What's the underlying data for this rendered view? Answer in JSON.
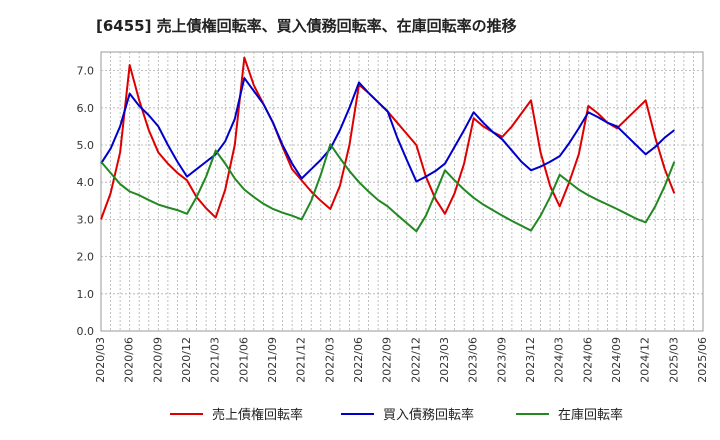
{
  "chart_data": {
    "type": "line",
    "title": "[6455]  売上債権回転率、買入債務回転率、在庫回転率の推移",
    "xlabel": "",
    "ylabel": "",
    "ylim": [
      0,
      7.5
    ],
    "yticks": [
      "0.0",
      "1.0",
      "2.0",
      "3.0",
      "4.0",
      "5.0",
      "6.0",
      "7.0"
    ],
    "xlim": [
      "2020/03",
      "2025/06"
    ],
    "xticks": [
      "2020/03",
      "2020/06",
      "2020/09",
      "2020/12",
      "2021/03",
      "2021/06",
      "2021/09",
      "2021/12",
      "2022/03",
      "2022/06",
      "2022/09",
      "2022/12",
      "2023/03",
      "2023/06",
      "2023/09",
      "2023/12",
      "2024/03",
      "2024/06",
      "2024/09",
      "2024/12",
      "2025/03",
      "2025/06"
    ],
    "grid": true,
    "legend_position": "bottom",
    "x": [
      "2020/03",
      "2020/04",
      "2020/05",
      "2020/06",
      "2020/07",
      "2020/08",
      "2020/09",
      "2020/10",
      "2020/11",
      "2020/12",
      "2021/01",
      "2021/02",
      "2021/03",
      "2021/04",
      "2021/05",
      "2021/06",
      "2021/07",
      "2021/08",
      "2021/09",
      "2021/10",
      "2021/11",
      "2021/12",
      "2022/01",
      "2022/02",
      "2022/03",
      "2022/04",
      "2022/05",
      "2022/06",
      "2022/07",
      "2022/08",
      "2022/09",
      "2022/10",
      "2022/11",
      "2022/12",
      "2023/01",
      "2023/02",
      "2023/03",
      "2023/04",
      "2023/05",
      "2023/06",
      "2023/07",
      "2023/08",
      "2023/09",
      "2023/10",
      "2023/11",
      "2023/12",
      "2024/01",
      "2024/02",
      "2024/03",
      "2024/04",
      "2024/05",
      "2024/06",
      "2024/07",
      "2024/08",
      "2024/09",
      "2024/10",
      "2024/11",
      "2024/12",
      "2025/01",
      "2025/02",
      "2025/03"
    ],
    "series": [
      {
        "name": "売上債権回転率",
        "color": "#dd0000",
        "values": [
          3.0,
          3.7,
          4.8,
          7.15,
          6.2,
          5.4,
          4.8,
          4.5,
          4.25,
          4.05,
          3.6,
          3.3,
          3.05,
          3.8,
          5.0,
          7.35,
          6.6,
          6.1,
          5.6,
          4.95,
          4.35,
          4.05,
          3.75,
          3.5,
          3.28,
          3.9,
          5.0,
          6.62,
          6.4,
          6.15,
          5.9,
          5.6,
          5.3,
          5.0,
          4.15,
          3.55,
          3.15,
          3.7,
          4.5,
          5.72,
          5.5,
          5.35,
          5.22,
          5.5,
          5.85,
          6.2,
          4.8,
          3.9,
          3.35,
          4.0,
          4.75,
          6.05,
          5.85,
          5.6,
          5.45,
          5.7,
          5.95,
          6.2,
          5.2,
          4.35,
          3.7
        ]
      },
      {
        "name": "買入債務回転率",
        "color": "#0000cc",
        "values": [
          4.5,
          4.9,
          5.5,
          6.38,
          6.05,
          5.8,
          5.5,
          5.0,
          4.55,
          4.15,
          4.35,
          4.55,
          4.75,
          5.1,
          5.7,
          6.8,
          6.45,
          6.1,
          5.6,
          5.0,
          4.5,
          4.1,
          4.35,
          4.6,
          4.9,
          5.4,
          6.0,
          6.68,
          6.4,
          6.15,
          5.9,
          5.2,
          4.6,
          4.02,
          4.15,
          4.3,
          4.5,
          4.95,
          5.4,
          5.88,
          5.6,
          5.35,
          5.15,
          4.85,
          4.55,
          4.32,
          4.42,
          4.55,
          4.7,
          5.05,
          5.45,
          5.88,
          5.75,
          5.6,
          5.5,
          5.25,
          5.0,
          4.75,
          4.95,
          5.2,
          5.4
        ]
      },
      {
        "name": "在庫回転率",
        "color": "#228822",
        "values": [
          4.55,
          4.25,
          3.95,
          3.75,
          3.65,
          3.52,
          3.4,
          3.32,
          3.25,
          3.15,
          3.6,
          4.15,
          4.85,
          4.5,
          4.1,
          3.8,
          3.6,
          3.42,
          3.28,
          3.18,
          3.1,
          3.0,
          3.5,
          4.2,
          5.02,
          4.65,
          4.3,
          4.0,
          3.75,
          3.52,
          3.35,
          3.12,
          2.9,
          2.68,
          3.1,
          3.7,
          4.32,
          4.05,
          3.8,
          3.58,
          3.4,
          3.25,
          3.1,
          2.96,
          2.83,
          2.7,
          3.1,
          3.6,
          4.2,
          4.0,
          3.8,
          3.65,
          3.52,
          3.4,
          3.28,
          3.15,
          3.02,
          2.92,
          3.35,
          3.9,
          4.55
        ]
      }
    ]
  }
}
